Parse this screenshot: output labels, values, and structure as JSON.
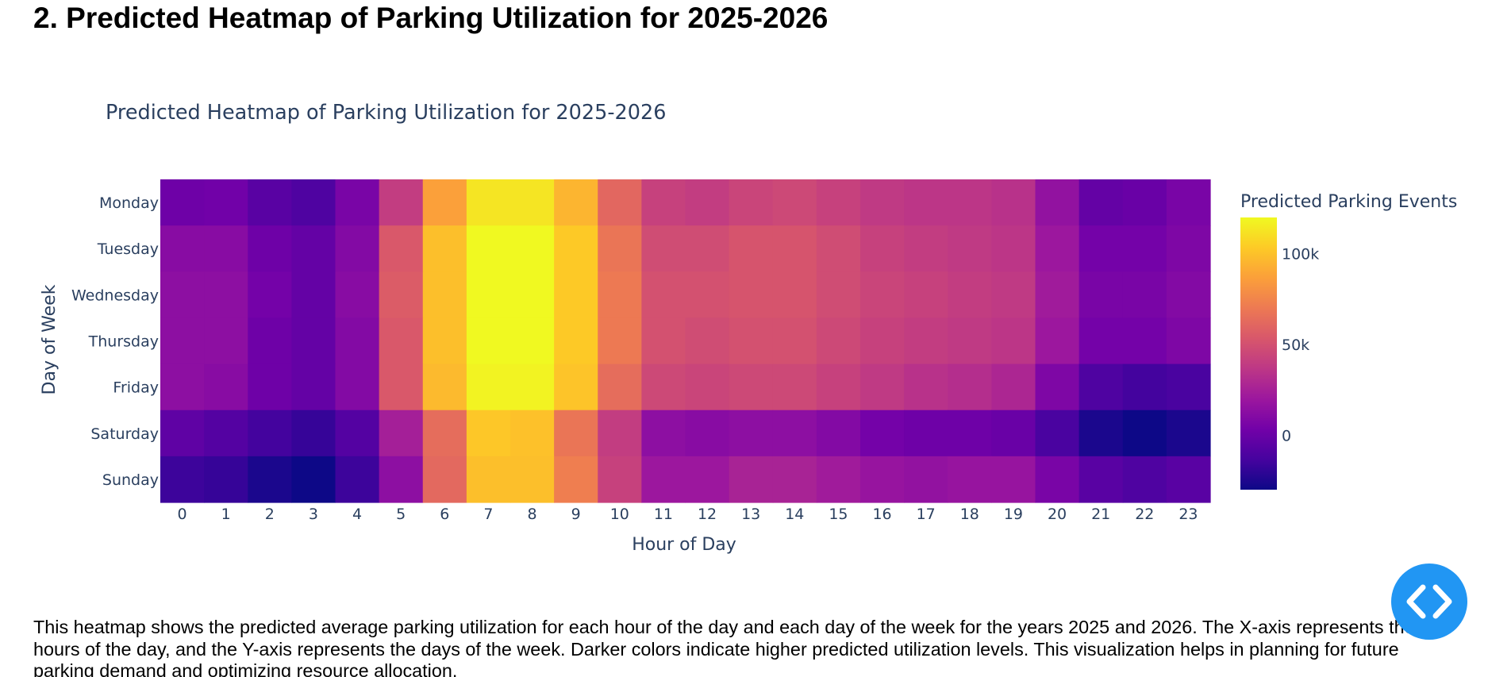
{
  "page": {
    "heading": "2. Predicted Heatmap of Parking Utilization for 2025-2026",
    "description": "This heatmap shows the predicted average parking utilization for each hour of the day and each day of the week for the years 2025 and 2026. The X-axis represents the hours of the day, and the Y-axis represents the days of the week. Darker colors indicate higher predicted utilization levels. This visualization helps in planning for future parking demand and optimizing resource allocation.",
    "code_toggle_icon": "code-brackets-icon"
  },
  "colors": {
    "text": "#2a3f5f",
    "toggle_button": "#2196f3",
    "colorscale": [
      "#0d0887",
      "#46039f",
      "#7201a8",
      "#9c179e",
      "#bd3786",
      "#d8576b",
      "#ed7953",
      "#fb9f3a",
      "#fdca26",
      "#f0f921"
    ]
  },
  "chart_data": {
    "type": "heatmap",
    "title": "Predicted Heatmap of Parking Utilization for 2025-2026",
    "xlabel": "Hour of Day",
    "ylabel": "Day of Week",
    "x": [
      "0",
      "1",
      "2",
      "3",
      "4",
      "5",
      "6",
      "7",
      "8",
      "9",
      "10",
      "11",
      "12",
      "13",
      "14",
      "15",
      "16",
      "17",
      "18",
      "19",
      "20",
      "21",
      "22",
      "23"
    ],
    "y": [
      "Monday",
      "Tuesday",
      "Wednesday",
      "Thursday",
      "Friday",
      "Saturday",
      "Sunday"
    ],
    "z": [
      [
        2000,
        3000,
        -6000,
        -10000,
        6000,
        40000,
        87000,
        113000,
        113000,
        95000,
        61000,
        42000,
        40000,
        44000,
        46000,
        42000,
        38000,
        36000,
        36000,
        34000,
        16000,
        -2000,
        0,
        6000
      ],
      [
        12000,
        12000,
        2000,
        -2000,
        10000,
        54000,
        99000,
        120000,
        120000,
        103000,
        68000,
        48000,
        48000,
        52000,
        52000,
        48000,
        42000,
        40000,
        38000,
        36000,
        20000,
        4000,
        4000,
        8000
      ],
      [
        14000,
        14000,
        4000,
        -2000,
        12000,
        56000,
        99000,
        120000,
        120000,
        103000,
        70000,
        50000,
        50000,
        52000,
        52000,
        48000,
        44000,
        42000,
        40000,
        38000,
        22000,
        6000,
        6000,
        10000
      ],
      [
        14000,
        14000,
        2000,
        -2000,
        10000,
        54000,
        99000,
        120000,
        120000,
        103000,
        70000,
        50000,
        48000,
        50000,
        50000,
        46000,
        42000,
        40000,
        38000,
        36000,
        20000,
        4000,
        4000,
        8000
      ],
      [
        14000,
        12000,
        2000,
        -2000,
        10000,
        54000,
        97000,
        118000,
        118000,
        101000,
        64000,
        46000,
        44000,
        46000,
        46000,
        42000,
        38000,
        34000,
        32000,
        28000,
        8000,
        -10000,
        -14000,
        -12000
      ],
      [
        -4000,
        -8000,
        -14000,
        -18000,
        -8000,
        24000,
        64000,
        102000,
        100000,
        68000,
        40000,
        14000,
        12000,
        14000,
        14000,
        10000,
        4000,
        2000,
        2000,
        0,
        -12000,
        -26000,
        -30000,
        -26000
      ],
      [
        -16000,
        -18000,
        -26000,
        -30000,
        -16000,
        14000,
        62000,
        99000,
        99000,
        72000,
        42000,
        20000,
        20000,
        26000,
        26000,
        22000,
        18000,
        16000,
        18000,
        18000,
        6000,
        -6000,
        -10000,
        -6000
      ]
    ],
    "zlim": [
      -30000,
      120000
    ],
    "colorbar": {
      "title": "Predicted Parking Events",
      "ticks": [
        0,
        50000,
        100000
      ],
      "tick_labels": [
        "0",
        "50k",
        "100k"
      ]
    },
    "colorscale": "Plasma"
  }
}
